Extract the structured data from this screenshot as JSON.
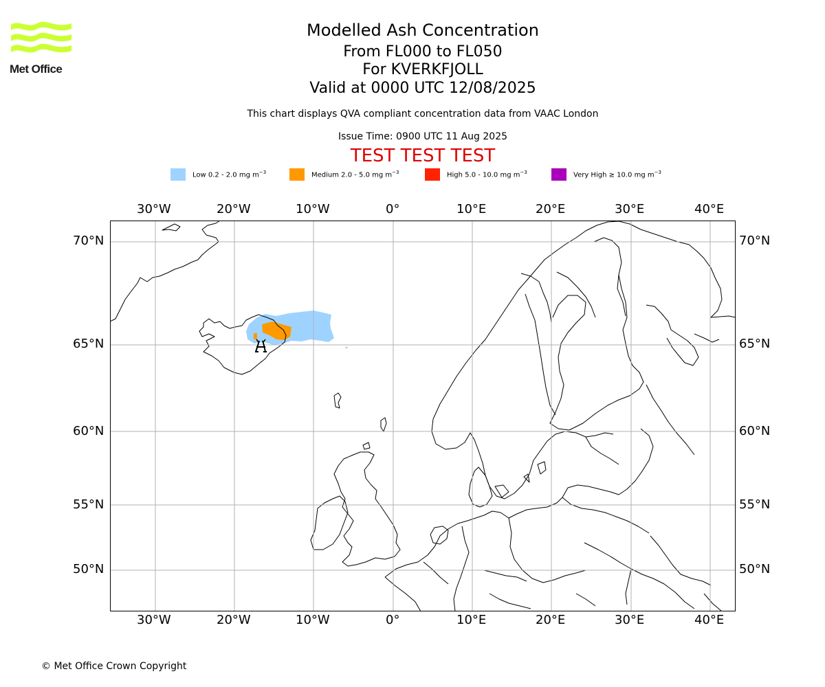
{
  "logo": {
    "text": "Met Office",
    "color": "#ccff33"
  },
  "header": {
    "title": "Modelled Ash Concentration",
    "levels": "From FL000 to FL050",
    "volcano": "For KVERKFJOLL",
    "valid": "Valid at 0000 UTC 12/08/2025",
    "description": "This chart displays QVA compliant concentration data from VAAC London",
    "issue_time": "Issue Time: 0900 UTC 11 Aug 2025",
    "test_banner": "TEST TEST TEST",
    "test_banner_color": "#dd0000"
  },
  "legend": [
    {
      "prefix": "Low 0.2 - 2.0 mg m",
      "exp": "−3",
      "color": "#9fd3ff"
    },
    {
      "prefix": "Medium 2.0 - 5.0 mg m",
      "exp": "−3",
      "color": "#ff9900"
    },
    {
      "prefix": "High 5.0 - 10.0 mg m",
      "exp": "−3",
      "color": "#ff2200"
    },
    {
      "prefix": "Very High ≥ 10.0 mg m",
      "exp": "−3",
      "color": "#aa00bb"
    }
  ],
  "map": {
    "longitude_ticks": [
      "30°W",
      "20°W",
      "10°W",
      "0°",
      "10°E",
      "20°E",
      "30°E",
      "40°E"
    ],
    "latitude_ticks": [
      "70°N",
      "65°N",
      "60°N",
      "55°N",
      "50°N"
    ],
    "grid_color": "#b0b0b0",
    "volcano_marker": "volcano-icon"
  },
  "footer": {
    "copyright": "© Met Office Crown Copyright"
  }
}
